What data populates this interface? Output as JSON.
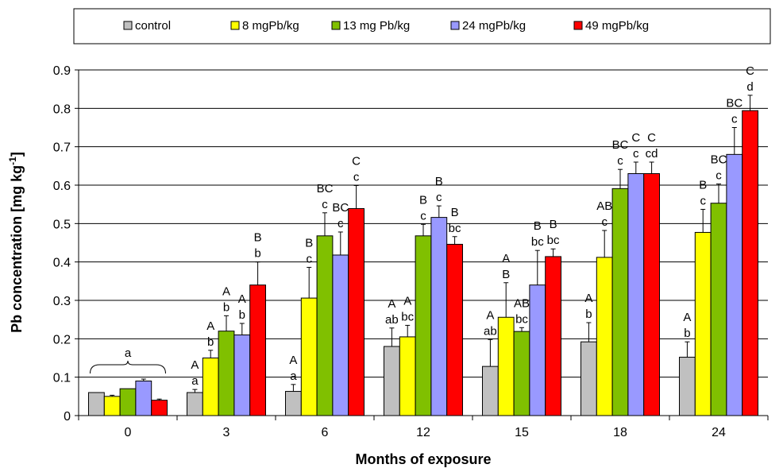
{
  "chart_data": {
    "type": "bar",
    "title": "",
    "xlabel": "Months of exposure",
    "ylabel_main": "Pb concentration [mg kg",
    "ylabel_sup": "-1",
    "ylabel_end": "]",
    "ylim": [
      0,
      0.9
    ],
    "yticks": [
      "0",
      "0.1",
      "0.2",
      "0.3",
      "0.4",
      "0.5",
      "0.6",
      "0.7",
      "0.8",
      "0.9"
    ],
    "grid": "horizontal",
    "legend_position": "top",
    "categories": [
      "0",
      "3",
      "6",
      "12",
      "15",
      "18",
      "24"
    ],
    "series": [
      {
        "name": "control",
        "color": "#c0c0c0",
        "values": [
          0.06,
          0.06,
          0.063,
          0.18,
          0.128,
          0.192,
          0.152
        ],
        "errors": [
          0.0,
          0.008,
          0.018,
          0.048,
          0.07,
          0.05,
          0.04
        ],
        "labels": [
          "",
          "A\na",
          "A\na",
          "A\nab",
          "A\nab",
          "A\nb",
          "A\nb"
        ]
      },
      {
        "name": "8 mgPb/kg",
        "color": "#ffff00",
        "values": [
          0.05,
          0.15,
          0.306,
          0.205,
          0.256,
          0.412,
          0.477
        ],
        "errors": [
          0.003,
          0.02,
          0.08,
          0.03,
          0.09,
          0.07,
          0.06
        ],
        "labels": [
          "",
          "A\nb",
          "B\nc",
          "A\nbc",
          "A\nB",
          "AB\nc",
          "B\nc"
        ]
      },
      {
        "name": "13 mg Pb/kg",
        "color": "#80c000",
        "values": [
          0.07,
          0.22,
          0.468,
          0.468,
          0.219,
          0.591,
          0.553
        ],
        "errors": [
          0.0,
          0.04,
          0.06,
          0.03,
          0.01,
          0.05,
          0.05
        ],
        "labels": [
          "",
          "A\nb",
          "BC\nc",
          "B\nc",
          "AB\nbc",
          "BC\nc",
          "BC\nc"
        ]
      },
      {
        "name": "24 mgPb/kg",
        "color": "#9999ff",
        "values": [
          0.09,
          0.21,
          0.418,
          0.516,
          0.34,
          0.63,
          0.68
        ],
        "errors": [
          0.005,
          0.03,
          0.06,
          0.03,
          0.09,
          0.03,
          0.07
        ],
        "labels": [
          "",
          "A\nb",
          "BC\nc",
          "B\nc",
          "B\nbc",
          "C\nc",
          "BC\nc"
        ]
      },
      {
        "name": "49 mgPb/kg",
        "color": "#ff0000",
        "values": [
          0.04,
          0.34,
          0.539,
          0.446,
          0.414,
          0.63,
          0.794
        ],
        "errors": [
          0.003,
          0.06,
          0.06,
          0.02,
          0.02,
          0.03,
          0.04
        ],
        "labels": [
          "",
          "B\nb",
          "C\nc",
          "B\nbc",
          "B\nbc",
          "C\ncd",
          "C\nd"
        ]
      }
    ],
    "group_annotation": {
      "category": "0",
      "text": "a"
    }
  }
}
